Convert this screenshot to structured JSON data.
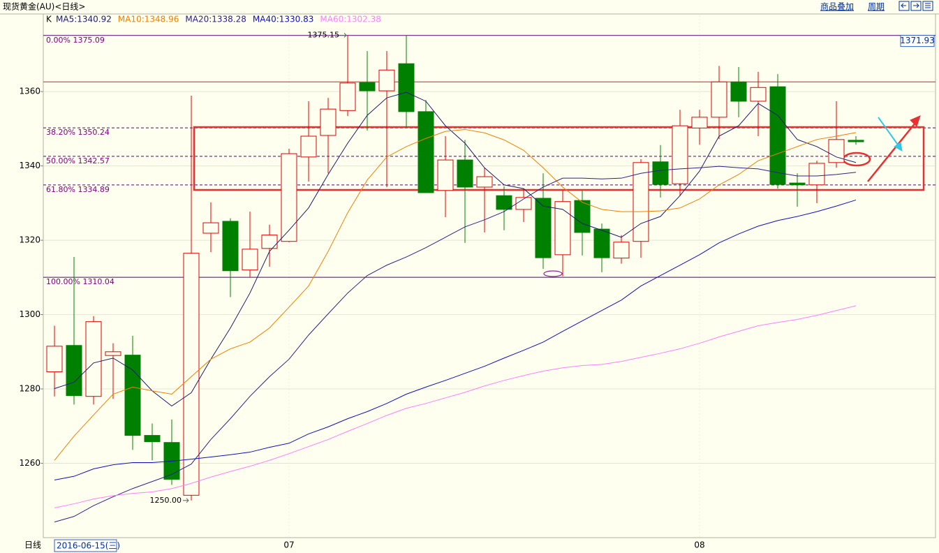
{
  "header": {
    "title": "现货黄金(AU)<日线>",
    "overlay": "商品叠加",
    "period": "周期"
  },
  "chart_data": {
    "type": "candlestick",
    "indicator_label": "K",
    "categories": [
      null,
      null,
      null,
      null,
      null,
      null,
      null,
      null,
      null,
      null,
      null,
      null,
      "07",
      null,
      null,
      null,
      null,
      null,
      null,
      null,
      null,
      null,
      null,
      null,
      null,
      null,
      null,
      null,
      null,
      null,
      null,
      null,
      null,
      "08",
      null,
      null,
      null,
      null,
      null,
      null,
      null,
      null
    ],
    "open": [
      1284.6,
      1291.7,
      1278,
      1289,
      1289.1,
      1267.5,
      1265.6,
      1251.4,
      1321.9,
      1325.1,
      1312,
      1317.8,
      1319.7,
      1342.4,
      1348.2,
      1354.9,
      1362.4,
      1360.2,
      1367.5,
      1354.6,
      1333.4,
      1341.6,
      1334.3,
      1332,
      1328.3,
      1331.3,
      1316.1,
      1330.7,
      1323,
      1315.2,
      1319.7,
      1341.1,
      1335.2,
      1350.2,
      1353.1,
      1362.6,
      1357.4,
      1361.3,
      1335.4,
      1334.9,
      1340.9,
      1346.9
    ],
    "high": [
      1297,
      1315.5,
      1299.6,
      1292.3,
      1294.3,
      1270.7,
      1271.8,
      1358.9,
      1330.2,
      1325.9,
      1327.7,
      1324.2,
      1344.6,
      1357.4,
      1358.3,
      1375.15,
      1370.9,
      1370.9,
      1375.1,
      1357.7,
      1348,
      1347,
      1339.5,
      1334.5,
      1333.9,
      1338,
      1333.5,
      1333.4,
      1324.5,
      1321.4,
      1341.8,
      1345.6,
      1355.1,
      1355.1,
      1366.9,
      1366.6,
      1365.3,
      1364.7,
      1338,
      1341.4,
      1357.4,
      1348
    ],
    "low": [
      1278,
      1275.8,
      1275.8,
      1277.3,
      1263.6,
      1260.8,
      1254.2,
      1250,
      1316.8,
      1304.7,
      1310.1,
      1312.9,
      1319.5,
      1335.8,
      1338,
      1353.4,
      1349.5,
      1334.3,
      1350.2,
      1332.8,
      1326.2,
      1319.3,
      1322.1,
      1322.7,
      1324.9,
      1312.3,
      1310.3,
      1315.9,
      1311.4,
      1313.7,
      1315.3,
      1331.5,
      1331.9,
      1345.7,
      1347.2,
      1353.1,
      1348,
      1333.9,
      1329,
      1330,
      1339.5,
      1345.7
    ],
    "close": [
      1291.5,
      1278.2,
      1298.1,
      1290,
      1267.5,
      1265.8,
      1255.7,
      1316.5,
      1324.7,
      1311.8,
      1317.6,
      1321.4,
      1343.3,
      1348,
      1355.3,
      1362.3,
      1360.2,
      1365.8,
      1354.6,
      1332.8,
      1341.6,
      1334.3,
      1337.1,
      1328.3,
      1331.5,
      1315.3,
      1330.4,
      1322.1,
      1315.3,
      1319.5,
      1340.9,
      1335,
      1350.8,
      1353.1,
      1362.6,
      1357.4,
      1361.1,
      1335,
      1334.9,
      1340.7,
      1347.1,
      1346.5
    ],
    "up_color": "#e00000",
    "down_color": "#008000",
    "series": [
      {
        "name": "MA5",
        "label": "MA5:1340.92",
        "color": "#1c1c6c",
        "values": [
          1280.1,
          1281.8,
          1287,
          1288.3,
          1285.1,
          1279.5,
          1275.4,
          1279,
          1288,
          1296.4,
          1305.8,
          1317,
          1322.7,
          1328.7,
          1337.7,
          1346.1,
          1353.6,
          1358.3,
          1359.8,
          1357.4,
          1350.8,
          1346.1,
          1339.5,
          1334.9,
          1333.9,
          1329.2,
          1328.3,
          1324.5,
          1322.7,
          1320.8,
          1324.5,
          1326.4,
          1332,
          1338.6,
          1348,
          1350.8,
          1356.8,
          1353.6,
          1347.1,
          1345.2,
          1342.4,
          1340.92
        ]
      },
      {
        "name": "MA10",
        "label": "MA10:1348.96",
        "color": "#f08000",
        "values": [
          1260.8,
          1267.3,
          1273,
          1278.6,
          1280.5,
          1279.5,
          1278.6,
          1283.3,
          1288,
          1290.8,
          1292.6,
          1296.4,
          1302,
          1307.7,
          1317,
          1327.4,
          1336.2,
          1342.4,
          1345.2,
          1347.4,
          1349.3,
          1349.8,
          1348.9,
          1347,
          1344.2,
          1339.5,
          1334.3,
          1330.2,
          1328.3,
          1327.7,
          1327.7,
          1327.9,
          1328.7,
          1331.1,
          1334.9,
          1337.7,
          1341.4,
          1343.3,
          1345.2,
          1347.1,
          1348,
          1348.96
        ]
      },
      {
        "name": "MA20",
        "label": "MA20:1338.28",
        "color": "#30208a",
        "values": [
          1244.2,
          1245.7,
          1248.6,
          1251,
          1253.2,
          1255.1,
          1257,
          1259.8,
          1266.4,
          1272,
          1278,
          1283.3,
          1288,
          1294.5,
          1300.2,
          1305.8,
          1310.5,
          1313.3,
          1315.5,
          1318,
          1320.8,
          1323.6,
          1325.5,
          1327.7,
          1331.1,
          1334.3,
          1336.7,
          1336.7,
          1336.5,
          1336.7,
          1338,
          1338.8,
          1339.2,
          1339.5,
          1339.9,
          1339.5,
          1339.2,
          1338.2,
          1337.3,
          1337.3,
          1337.7,
          1338.28
        ]
      },
      {
        "name": "MA40",
        "label": "MA40:1330.83",
        "color": "#1010c0",
        "values": [
          1255.5,
          1256.5,
          1258.5,
          1259.6,
          1260.2,
          1260.2,
          1260.6,
          1261.1,
          1261.7,
          1262.3,
          1263,
          1264.3,
          1265.4,
          1267.9,
          1269.8,
          1272,
          1273.9,
          1276.1,
          1278.6,
          1280.5,
          1282.3,
          1284.2,
          1286.1,
          1288.3,
          1290.4,
          1292.6,
          1295.5,
          1298.3,
          1301.1,
          1303.9,
          1307.7,
          1310.5,
          1313.3,
          1316.1,
          1319.3,
          1321.7,
          1323.8,
          1325.3,
          1326.4,
          1327.7,
          1329.2,
          1330.83
        ]
      },
      {
        "name": "MA60",
        "label": "MA60:1302.38",
        "color": "#ff80ff",
        "values": [
          1248,
          1249.1,
          1250.4,
          1251.3,
          1251.9,
          1252.3,
          1253.2,
          1254.6,
          1256.3,
          1257.8,
          1259.2,
          1260.8,
          1262.6,
          1264.5,
          1266.4,
          1268.6,
          1270.7,
          1272.9,
          1274.8,
          1276.1,
          1277.6,
          1279.1,
          1280.8,
          1282.3,
          1283.6,
          1284.8,
          1285.7,
          1286.3,
          1286.6,
          1287.4,
          1288.5,
          1289.6,
          1290.8,
          1292.3,
          1294,
          1295.5,
          1297,
          1297.9,
          1298.7,
          1299.8,
          1301.1,
          1302.38
        ]
      }
    ],
    "ylim": [
      1240,
      1380.5
    ],
    "yticks": [
      1260,
      1280,
      1300,
      1320,
      1340,
      1360
    ],
    "grid": true,
    "fib_levels": [
      {
        "value": 1375.09,
        "label": "0.00% 1375.09"
      },
      {
        "value": 1350.24,
        "label": "38.20% 1350.24"
      },
      {
        "value": 1342.57,
        "label": "50.00% 1342.57"
      },
      {
        "value": 1334.89,
        "label": "61.80% 1334.89"
      },
      {
        "value": 1310.04,
        "label": "100.00% 1310.04"
      }
    ],
    "reference_line": 1362.6,
    "price_tag": 1371.93,
    "high_label": "1375.15",
    "low_label": "1250.00"
  },
  "footer": {
    "period": "日线",
    "date": "2016-06-15(三)"
  }
}
